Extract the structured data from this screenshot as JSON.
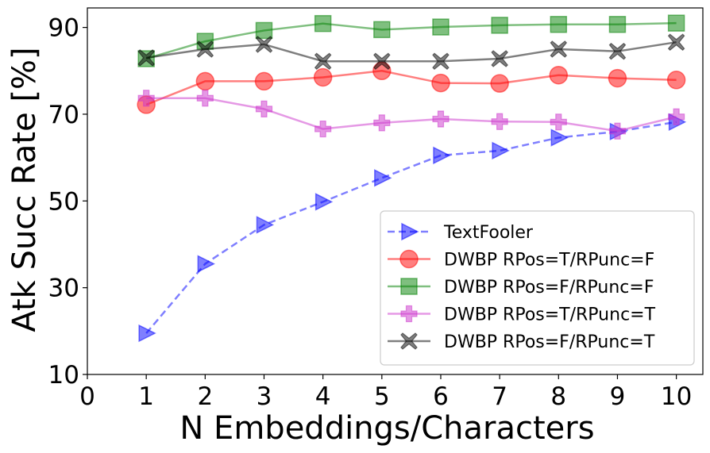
{
  "chart_data": {
    "type": "line",
    "title": "",
    "xlabel": "N Embeddings/Characters",
    "ylabel": "Atk Succ Rate [%]",
    "xlim": [
      0,
      10.45
    ],
    "ylim": [
      10,
      94.5
    ],
    "xticks": [
      0,
      1,
      2,
      3,
      4,
      5,
      6,
      7,
      8,
      9,
      10
    ],
    "yticks": [
      10,
      30,
      50,
      70,
      90
    ],
    "grid": false,
    "legend_position": "lower-right",
    "x": [
      1,
      2,
      3,
      4,
      5,
      6,
      7,
      8,
      9,
      10
    ],
    "series": [
      {
        "name": "TextFooler",
        "color": "#0000ff",
        "marker": "triangle-right",
        "linestyle": "dashed",
        "values": [
          19.5,
          35.5,
          44.5,
          49.8,
          55.3,
          60.5,
          61.6,
          64.6,
          66.0,
          68.2
        ]
      },
      {
        "name": "DWBP RPos=T/RPunc=F",
        "color": "#ff0000",
        "marker": "circle",
        "linestyle": "solid",
        "values": [
          72.2,
          77.6,
          77.6,
          78.5,
          80.0,
          77.2,
          77.1,
          79.0,
          78.3,
          77.9
        ]
      },
      {
        "name": "DWBP RPos=F/RPunc=F",
        "color": "#008000",
        "marker": "square",
        "linestyle": "solid",
        "values": [
          82.8,
          86.8,
          89.3,
          90.9,
          89.5,
          90.1,
          90.5,
          90.7,
          90.7,
          91.0
        ]
      },
      {
        "name": "DWBP RPos=T/RPunc=T",
        "color": "#cc33cc",
        "marker": "plus",
        "linestyle": "solid",
        "values": [
          73.7,
          73.7,
          71.2,
          66.6,
          68.0,
          68.9,
          68.3,
          68.2,
          66.1,
          69.4
        ]
      },
      {
        "name": "DWBP RPos=F/RPunc=T",
        "color": "#000000",
        "marker": "x",
        "linestyle": "solid",
        "values": [
          83.0,
          85.0,
          86.1,
          82.2,
          82.2,
          82.2,
          82.8,
          85.0,
          84.5,
          86.6
        ]
      }
    ]
  }
}
